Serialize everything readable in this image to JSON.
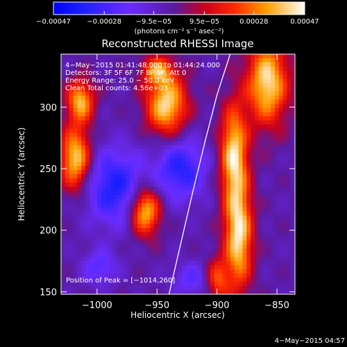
{
  "chart_data": {
    "type": "heatmap",
    "title": "Reconstructed RHESSI Image",
    "xlabel": "Heliocentric X (arcsec)",
    "ylabel": "Heliocentric Y (arcsec)",
    "xlim": [
      -1030,
      -835
    ],
    "ylim": [
      148,
      343
    ],
    "x_ticks": [
      -1000,
      -950,
      -900,
      -850
    ],
    "x_tick_labels": [
      "−1000",
      "−950",
      "−900",
      "−850"
    ],
    "y_ticks": [
      150,
      200,
      250,
      300
    ],
    "y_tick_labels": [
      "150",
      "200",
      "250",
      "300"
    ],
    "colorbar": {
      "min": -0.00047,
      "max": 0.00047,
      "tick_values": [
        -0.00047,
        -0.00028,
        -9.5e-05,
        9.5e-05,
        0.00028,
        0.00047
      ],
      "tick_labels": [
        "−0.00047",
        "−0.00028",
        "−9.5e−05",
        "9.5e−05",
        "0.00028",
        "0.00047"
      ],
      "units": "(photons cm⁻² s⁻¹ asec⁻²)"
    },
    "annotations": [
      " 4−May−2015 01:41:48.000 to 01:44:24.000",
      "Detectors: 3F 5F 6F 7F 8F 9F, Att 0",
      "Energy Range: 25.0 − 50.0 keV",
      "Clean     Total counts: 4.56e+03"
    ],
    "peak_label": "Position of Peak = [−1014,260]",
    "sources": [
      {
        "x": -1018,
        "y": 258,
        "sx": 9,
        "sy": 18,
        "amp": 0.00046
      },
      {
        "x": -1014,
        "y": 305,
        "sx": 8,
        "sy": 12,
        "amp": 0.0004
      },
      {
        "x": -960,
        "y": 216,
        "sx": 9,
        "sy": 14,
        "amp": 0.00047
      },
      {
        "x": -942,
        "y": 302,
        "sx": 12,
        "sy": 18,
        "amp": 0.00046
      },
      {
        "x": -950,
        "y": 330,
        "sx": 9,
        "sy": 8,
        "amp": 0.0003
      },
      {
        "x": -858,
        "y": 320,
        "sx": 12,
        "sy": 24,
        "amp": 0.00047
      },
      {
        "x": -886,
        "y": 262,
        "sx": 8,
        "sy": 28,
        "amp": 0.00045
      },
      {
        "x": -882,
        "y": 195,
        "sx": 8,
        "sy": 30,
        "amp": 0.00047
      },
      {
        "x": -900,
        "y": 160,
        "sx": 7,
        "sy": 12,
        "amp": 0.0003
      },
      {
        "x": -998,
        "y": 170,
        "sx": 10,
        "sy": 10,
        "amp": -0.0002
      },
      {
        "x": -985,
        "y": 235,
        "sx": 18,
        "sy": 22,
        "amp": -0.00032
      },
      {
        "x": -930,
        "y": 250,
        "sx": 15,
        "sy": 18,
        "amp": -0.0003
      },
      {
        "x": -920,
        "y": 160,
        "sx": 12,
        "sy": 10,
        "amp": -0.00018
      }
    ],
    "limb": {
      "x": [
        -940,
        -930,
        -920,
        -910,
        -900,
        -889
      ],
      "y": [
        148,
        190,
        232,
        272,
        310,
        343
      ]
    }
  },
  "footer": {
    "timestamp": "4−May−2015 04:57"
  }
}
